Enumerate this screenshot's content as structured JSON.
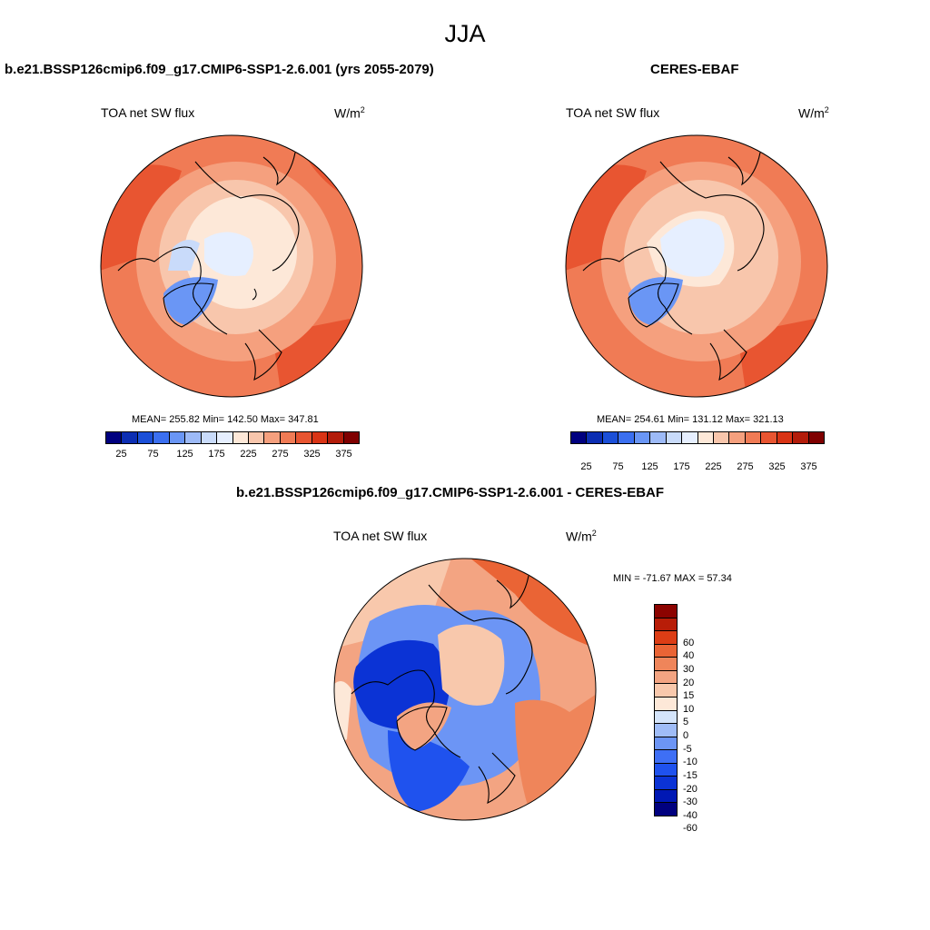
{
  "title": "JJA",
  "panels": {
    "model": {
      "title": "b.e21.BSSP126cmip6.f09_g17.CMIP6-SSP1-2.6.001 (yrs 2055-2079)",
      "variable": "TOA net SW flux",
      "units": "W/m",
      "units_sup": "2",
      "stats": "MEAN= 255.82  Min= 142.50  Max= 347.81"
    },
    "obs": {
      "title": "CERES-EBAF",
      "variable": "TOA net SW flux",
      "units": "W/m",
      "units_sup": "2",
      "stats": "MEAN= 254.61  Min= 131.12  Max= 321.13"
    },
    "diff": {
      "title": "b.e21.BSSP126cmip6.f09_g17.CMIP6-SSP1-2.6.001 - CERES-EBAF",
      "variable": "TOA net SW flux",
      "units": "W/m",
      "units_sup": "2",
      "stats": "MIN = -71.67 MAX =  57.34"
    }
  },
  "colorbars": {
    "abs": {
      "colors": [
        "#00007f",
        "#0c2eb3",
        "#1b4fd8",
        "#3b6ff0",
        "#6a96f5",
        "#9dbaf7",
        "#c9dbfa",
        "#e6efff",
        "#fde8d8",
        "#f8c6ac",
        "#f5a07e",
        "#f07b55",
        "#e85531",
        "#d93415",
        "#b31c0a",
        "#7f0000"
      ],
      "ticks": [
        "25",
        "75",
        "125",
        "175",
        "225",
        "275",
        "325",
        "375"
      ]
    },
    "diff": {
      "colors": [
        "#00007f",
        "#0018b4",
        "#0b33d5",
        "#1f52ee",
        "#3e6ff5",
        "#6c95f5",
        "#9fbcf7",
        "#d4e4fa",
        "#fde8d8",
        "#f8c8ac",
        "#f3a482",
        "#ef855a",
        "#ea6435",
        "#dc3d15",
        "#b81d08",
        "#8c0300"
      ],
      "ticks": [
        "60",
        "40",
        "30",
        "20",
        "15",
        "10",
        "5",
        "0",
        "-5",
        "-10",
        "-15",
        "-20",
        "-30",
        "-40",
        "-60"
      ]
    }
  }
}
